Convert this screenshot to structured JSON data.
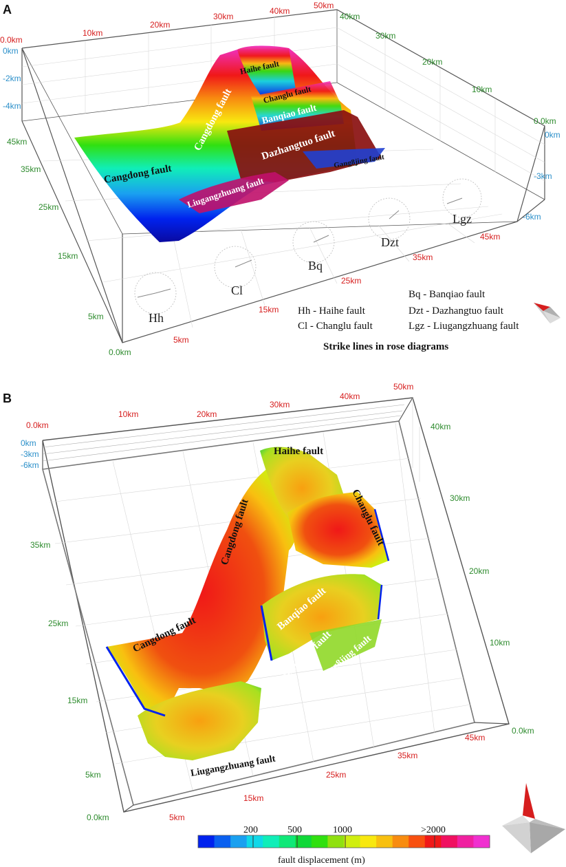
{
  "panel_a": {
    "label": "A",
    "top_x_ticks": [
      "0.0km",
      "10km",
      "20km",
      "30km",
      "40km",
      "50km"
    ],
    "right_y_ticks": [
      "40km",
      "30km",
      "20km",
      "10km",
      "0.0km"
    ],
    "left_depth_ticks": [
      "0km",
      "-2km",
      "-4km"
    ],
    "right_depth_ticks": [
      "0km",
      "-3km",
      "-6km"
    ],
    "left_y_ticks": [
      "45km",
      "35km",
      "25km",
      "15km",
      "5km",
      "0.0km"
    ],
    "bottom_x_ticks": [
      "5km",
      "15km",
      "25km",
      "35km",
      "45km"
    ],
    "fault_labels": [
      "Haihe fault",
      "Cangdong fault",
      "Changlu fault",
      "Banqiao fault",
      "Dazhangtuo fault",
      "Cangdong fault",
      "Gang8jing fault",
      "Liugangzhuang fault"
    ],
    "rose_labels": [
      "Hh",
      "Cl",
      "Bq",
      "Dzt",
      "Lgz"
    ],
    "legend": {
      "hh": "Hh - Haihe fault",
      "cl": "Cl - Changlu fault",
      "bq": "Bq - Banqiao fault",
      "dzt": "Dzt - Dazhangtuo fault",
      "lgz": "Lgz - Liugangzhuang fault",
      "title": "Strike lines in rose diagrams"
    }
  },
  "panel_b": {
    "label": "B",
    "top_x_ticks": [
      "0.0km",
      "10km",
      "20km",
      "30km",
      "40km",
      "50km"
    ],
    "right_y_ticks": [
      "40km",
      "30km",
      "20km",
      "10km",
      "0.0km"
    ],
    "left_depth_ticks": [
      "0km",
      "-3km",
      "-6km"
    ],
    "left_y_ticks": [
      "35km",
      "25km",
      "15km",
      "5km",
      "0.0km"
    ],
    "bottom_x_ticks": [
      "5km",
      "15km",
      "25km",
      "35km",
      "45km"
    ],
    "fault_labels": [
      "Haihe fault",
      "Cangdong fault",
      "Changlu fault",
      "Cangdong fault",
      "Banqiao fault",
      "Dazhangtuo fault",
      "Gang8jing fault",
      "Liugangzhuang fault"
    ]
  },
  "colorbar": {
    "title": "fault displacement (m)",
    "ticks": [
      "200",
      "500",
      "1000",
      ">2000"
    ],
    "colors": [
      "#0022ee",
      "#0a60f0",
      "#1aa0f0",
      "#10d8e8",
      "#10eeb8",
      "#10e878",
      "#10d838",
      "#30e010",
      "#90e010",
      "#d0ee10",
      "#f8e810",
      "#f8c010",
      "#f88c10",
      "#f85010",
      "#f01818",
      "#f01060",
      "#f020a0",
      "#f030d0"
    ]
  },
  "colors": {
    "x_axis": "#d61e1e",
    "y_axis": "#2e8b2e",
    "z_axis": "#2b8fc9"
  }
}
